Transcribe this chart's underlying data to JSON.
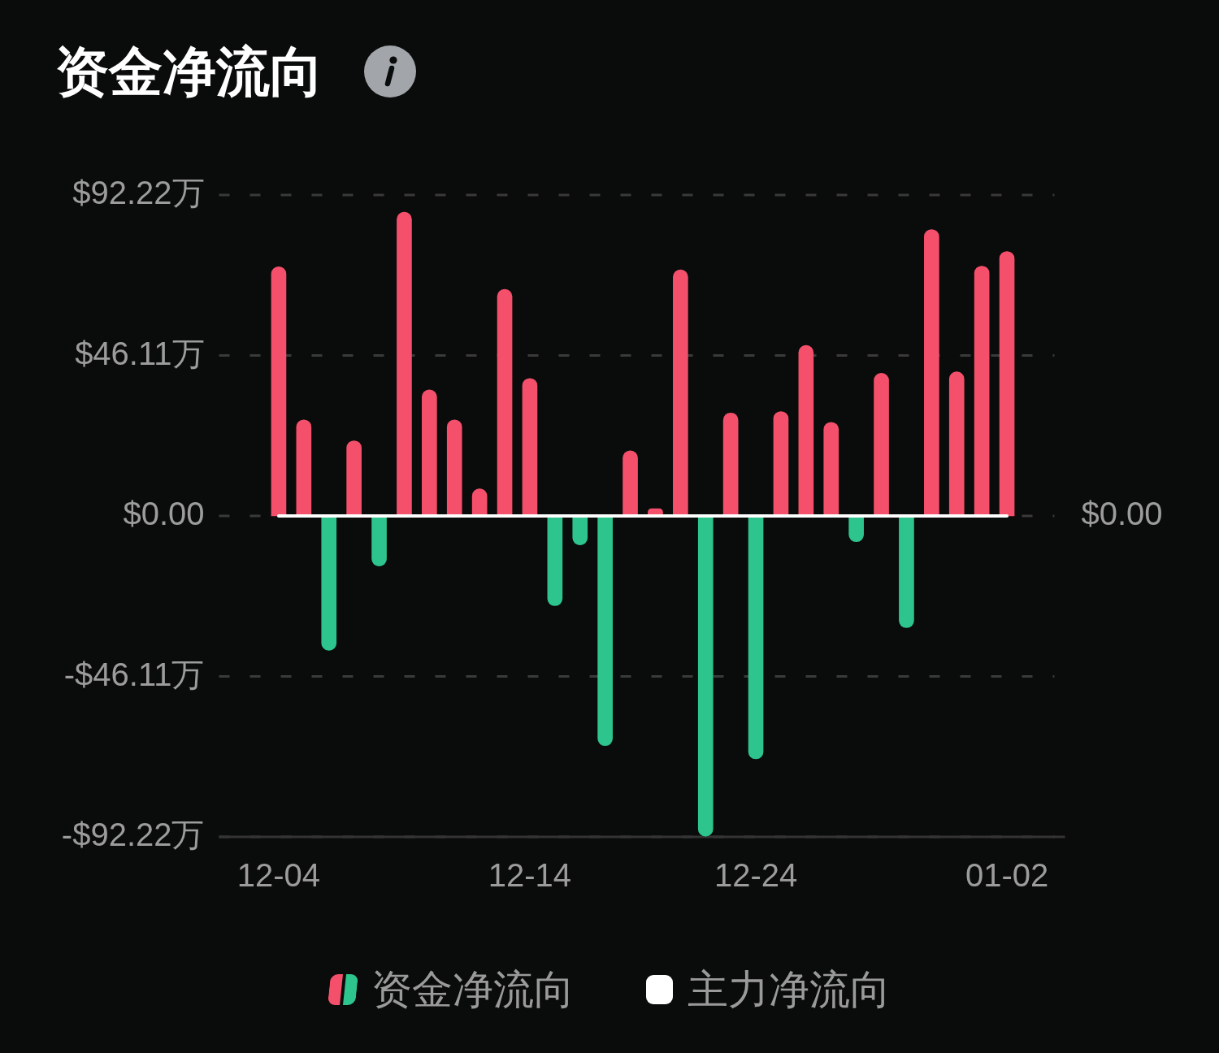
{
  "chart_data": {
    "type": "bar",
    "title": "资金净流向",
    "categories": [
      "12-04",
      null,
      null,
      null,
      null,
      null,
      null,
      null,
      null,
      null,
      "12-14",
      null,
      null,
      null,
      null,
      null,
      null,
      null,
      null,
      "12-24",
      null,
      null,
      null,
      null,
      null,
      null,
      null,
      null,
      null,
      "01-02"
    ],
    "series": [
      {
        "name": "资金净流向",
        "colors": [
          "#f5506b",
          "#f5506b",
          "#2ec48d",
          "#f5506b",
          "#2ec48d",
          "#f5506b",
          "#f5506b",
          "#f5506b",
          "#f5506b",
          "#f5506b",
          "#f5506b",
          "#2ec48d",
          "#2ec48d",
          "#2ec48d",
          "#f5506b",
          "#f5506b",
          "#f5506b",
          "#2ec48d",
          "#f5506b",
          "#2ec48d",
          "#f5506b",
          "#f5506b",
          "#f5506b",
          "#2ec48d",
          "#f5506b",
          "#2ec48d",
          "#f5506b",
          "#f5506b",
          "#f5506b",
          "#f5506b"
        ],
        "values": [
          71.6,
          27.6,
          -38.6,
          21.6,
          -14.4,
          87.3,
          36.2,
          27.6,
          7.8,
          65.1,
          39.5,
          -25.8,
          -8.3,
          -66.0,
          18.7,
          2.1,
          70.7,
          -92.0,
          29.6,
          -69.8,
          30.0,
          49.0,
          26.9,
          -7.4,
          41.0,
          -32.1,
          82.3,
          41.4,
          71.8,
          76.0
        ]
      },
      {
        "name": "主力净流向",
        "type": "line",
        "color": "#ffffff",
        "values": [
          0,
          0,
          0,
          0,
          0,
          0,
          0,
          0,
          0,
          0,
          0,
          0,
          0,
          0,
          0,
          0,
          0,
          0,
          0,
          0,
          0,
          0,
          0,
          0,
          0,
          0,
          0,
          0,
          0,
          0
        ]
      }
    ],
    "ylim": [
      -92.22,
      92.22
    ],
    "yticks": [
      {
        "value": -92.22,
        "label": "-$92.22万"
      },
      {
        "value": -46.11,
        "label": "-$46.11万"
      },
      {
        "value": 0,
        "label": "$0.00"
      },
      {
        "value": 46.11,
        "label": "$46.11万"
      },
      {
        "value": 92.22,
        "label": "$92.22万"
      }
    ],
    "annotations": [
      "$0.00"
    ],
    "grid": "y",
    "legend": "bottom"
  }
}
